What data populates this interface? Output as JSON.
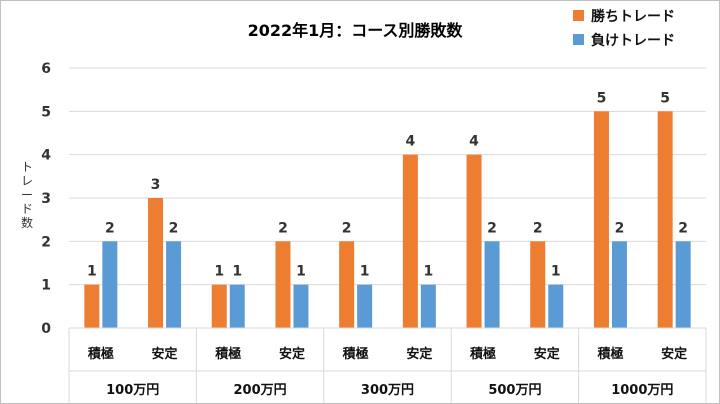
{
  "chart_data": {
    "type": "bar",
    "title": "2022年1月：コース別勝敗数",
    "ylabel": "トレード数",
    "ylim": [
      0,
      6
    ],
    "yticks": [
      0,
      1,
      2,
      3,
      4,
      5,
      6
    ],
    "grid": true,
    "legend_position": "top-right",
    "groups": [
      {
        "label": "100万円",
        "categories": [
          "積極",
          "安定"
        ]
      },
      {
        "label": "200万円",
        "categories": [
          "積極",
          "安定"
        ]
      },
      {
        "label": "300万円",
        "categories": [
          "積極",
          "安定"
        ]
      },
      {
        "label": "500万円",
        "categories": [
          "積極",
          "安定"
        ]
      },
      {
        "label": "1000万円",
        "categories": [
          "積極",
          "安定"
        ]
      }
    ],
    "series": [
      {
        "name": "勝ちトレード",
        "color": "#ED7D31",
        "values": [
          1,
          3,
          1,
          2,
          2,
          4,
          4,
          2,
          5,
          5
        ]
      },
      {
        "name": "負けトレード",
        "color": "#5B9BD5",
        "values": [
          2,
          2,
          1,
          1,
          1,
          1,
          2,
          1,
          2,
          2
        ]
      }
    ]
  }
}
